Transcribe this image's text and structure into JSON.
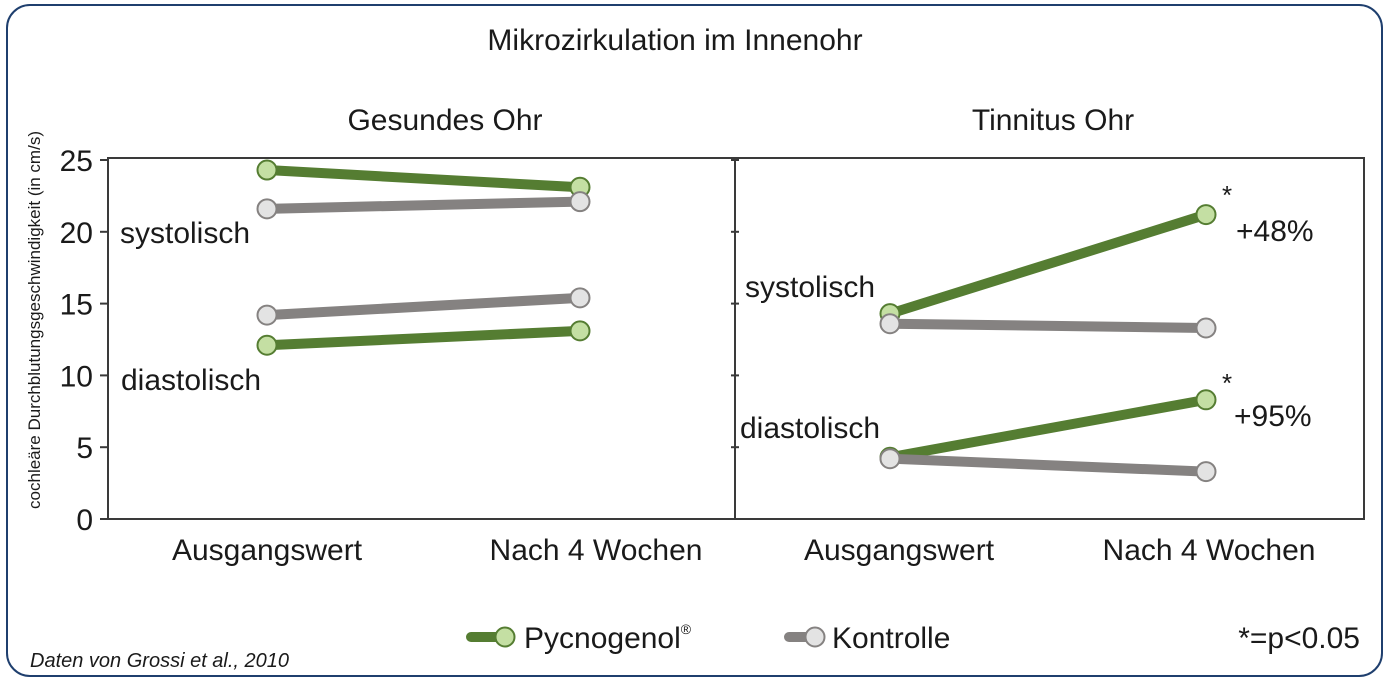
{
  "colors": {
    "pycnogenol_line": "#557d32",
    "pycnogenol_marker": "#c4dfa3",
    "kontrolle_line": "#858281",
    "kontrolle_marker": "#e3e3e3",
    "frame": "#1f3f6e"
  },
  "chart_data": {
    "type": "line",
    "title": "Mikrozirkulation im Innenohr",
    "ylabel": "cochleäre Durchblutungsgeschwindigkeit (in cm/s)",
    "ylim": [
      0,
      25
    ],
    "yticks": [
      "0",
      "5",
      "10",
      "15",
      "20",
      "25"
    ],
    "categories": [
      "Ausgangswert",
      "Nach 4 Wochen"
    ],
    "legend": {
      "position": "bottom",
      "pycnogenol": "Pycnogenol",
      "pycnogenol_mark": "®",
      "kontrolle": "Kontrolle"
    },
    "significance_note": "*=p<0.05",
    "source": "Daten von Grossi et al., 2010",
    "panels": [
      {
        "title": "Gesundes Ohr",
        "labels": {
          "systolisch": "systolisch",
          "diastolisch": "diastolisch"
        },
        "series": [
          {
            "name": "Pycnogenol",
            "measure": "systolisch",
            "values": [
              24.3,
              23.1
            ]
          },
          {
            "name": "Kontrolle",
            "measure": "systolisch",
            "values": [
              21.6,
              22.1
            ]
          },
          {
            "name": "Kontrolle",
            "measure": "diastolisch",
            "values": [
              14.2,
              15.4
            ]
          },
          {
            "name": "Pycnogenol",
            "measure": "diastolisch",
            "values": [
              12.1,
              13.1
            ]
          }
        ]
      },
      {
        "title": "Tinnitus Ohr",
        "labels": {
          "systolisch": "systolisch",
          "diastolisch": "diastolisch"
        },
        "annotations": {
          "sys_star": "*",
          "sys_pct": "+48%",
          "dia_star": "*",
          "dia_pct": "+95%"
        },
        "series": [
          {
            "name": "Pycnogenol",
            "measure": "systolisch",
            "values": [
              14.3,
              21.2
            ]
          },
          {
            "name": "Kontrolle",
            "measure": "systolisch",
            "values": [
              13.6,
              13.3
            ]
          },
          {
            "name": "Pycnogenol",
            "measure": "diastolisch",
            "values": [
              4.3,
              8.3
            ]
          },
          {
            "name": "Kontrolle",
            "measure": "diastolisch",
            "values": [
              4.2,
              3.3
            ]
          }
        ]
      }
    ]
  }
}
